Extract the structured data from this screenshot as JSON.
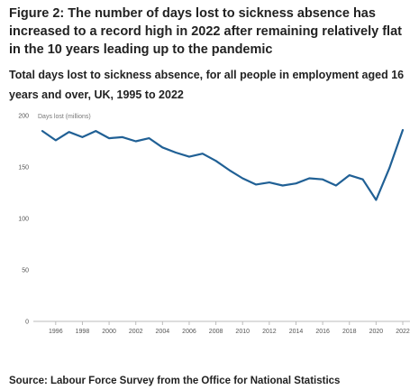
{
  "figure": {
    "title": "Figure 2: The number of days lost to sickness absence has increased to a record high in 2022 after remaining relatively flat in the 10 years leading up to the pandemic",
    "subtitle": "Total days lost to sickness absence, for all people in employment aged 16 years and over, UK, 1995 to 2022",
    "source": "Source: Labour Force Survey from the Office for National Statistics"
  },
  "chart_data": {
    "type": "line",
    "ylabel": "Days lost (millions)",
    "xlabel": "",
    "ylim": [
      0,
      200
    ],
    "xlim": [
      1995,
      2022
    ],
    "yticks": [
      0,
      50,
      100,
      150,
      200
    ],
    "xticks": [
      1996,
      1998,
      2000,
      2002,
      2004,
      2006,
      2008,
      2010,
      2012,
      2014,
      2016,
      2018,
      2020,
      2022
    ],
    "grid": false,
    "line_color": "#206095",
    "series": [
      {
        "x": [
          1995,
          1996,
          1997,
          1998,
          1999,
          2000,
          2001,
          2002,
          2003,
          2004,
          2005,
          2006,
          2007,
          2008,
          2009,
          2010,
          2011,
          2012,
          2013,
          2014,
          2015,
          2016,
          2017,
          2018,
          2019,
          2020,
          2021,
          2022
        ],
        "values": [
          185,
          176,
          184,
          179,
          185,
          178,
          179,
          175,
          178,
          169,
          164,
          160,
          163,
          156,
          147,
          139,
          133,
          135,
          132,
          134,
          139,
          138,
          132,
          142,
          138,
          118,
          149,
          186
        ]
      }
    ]
  }
}
